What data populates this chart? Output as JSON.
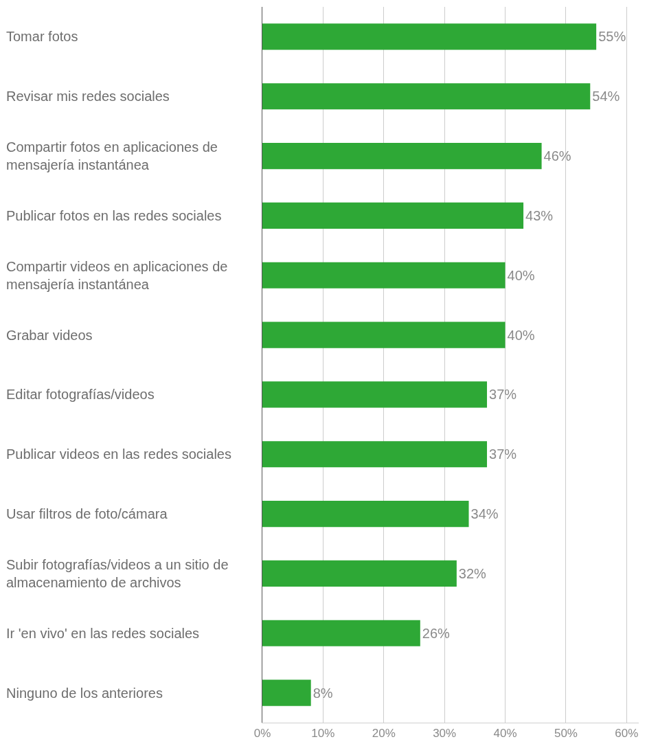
{
  "chart_data": {
    "type": "bar",
    "orientation": "horizontal",
    "categories": [
      "Tomar fotos",
      "Revisar mis redes sociales",
      "Compartir fotos en aplicaciones de mensajería instantánea",
      "Publicar fotos en las redes sociales",
      "Compartir videos en aplicaciones de mensajería instantánea",
      "Grabar videos",
      "Editar fotografías/videos",
      "Publicar videos en las redes sociales",
      "Usar filtros de foto/cámara",
      "Subir fotografías/videos a un sitio de almacenamiento de archivos",
      "Ir 'en vivo' en las redes sociales",
      "Ninguno de los anteriores"
    ],
    "values": [
      55,
      54,
      46,
      43,
      40,
      40,
      37,
      37,
      34,
      32,
      26,
      8
    ],
    "value_labels": [
      "55%",
      "54%",
      "46%",
      "43%",
      "40%",
      "40%",
      "37%",
      "37%",
      "34%",
      "32%",
      "26%",
      "8%"
    ],
    "color": "#2ea836",
    "xlim": [
      0,
      62
    ],
    "xticks": [
      {
        "value": 0,
        "label": "0%"
      },
      {
        "value": 10,
        "label": "10%"
      },
      {
        "value": 20,
        "label": "20%"
      },
      {
        "value": 30,
        "label": "30%"
      },
      {
        "value": 40,
        "label": "40%"
      },
      {
        "value": 50,
        "label": "50%"
      },
      {
        "value": 60,
        "label": "60%"
      }
    ],
    "grid": "x"
  }
}
